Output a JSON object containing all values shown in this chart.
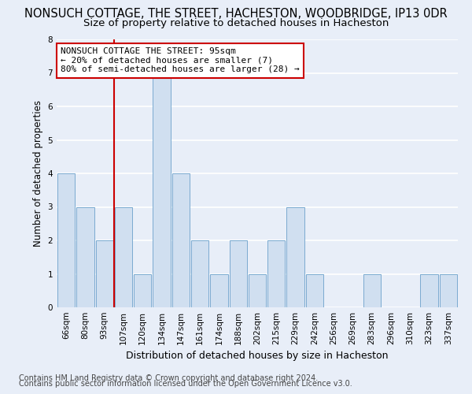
{
  "title": "NONSUCH COTTAGE, THE STREET, HACHESTON, WOODBRIDGE, IP13 0DR",
  "subtitle": "Size of property relative to detached houses in Hacheston",
  "xlabel": "Distribution of detached houses by size in Hacheston",
  "ylabel": "Number of detached properties",
  "categories": [
    "66sqm",
    "80sqm",
    "93sqm",
    "107sqm",
    "120sqm",
    "134sqm",
    "147sqm",
    "161sqm",
    "174sqm",
    "188sqm",
    "202sqm",
    "215sqm",
    "229sqm",
    "242sqm",
    "256sqm",
    "269sqm",
    "283sqm",
    "296sqm",
    "310sqm",
    "323sqm",
    "337sqm"
  ],
  "values": [
    4,
    3,
    2,
    3,
    1,
    7,
    4,
    2,
    1,
    2,
    1,
    2,
    3,
    1,
    0,
    0,
    1,
    0,
    0,
    1,
    1
  ],
  "bar_color": "#d0dff0",
  "bar_edge_color": "#7aaad0",
  "vline_color": "#cc0000",
  "vline_x": 2.5,
  "annotation_text": "NONSUCH COTTAGE THE STREET: 95sqm\n← 20% of detached houses are smaller (7)\n80% of semi-detached houses are larger (28) →",
  "annotation_box_facecolor": "white",
  "annotation_box_edgecolor": "#cc0000",
  "ylim": [
    0,
    8
  ],
  "yticks": [
    0,
    1,
    2,
    3,
    4,
    5,
    6,
    7,
    8
  ],
  "background_color": "#e8eef8",
  "plot_bg_color": "#e8eef8",
  "grid_color": "white",
  "footer_line1": "Contains HM Land Registry data © Crown copyright and database right 2024.",
  "footer_line2": "Contains public sector information licensed under the Open Government Licence v3.0.",
  "title_fontsize": 10.5,
  "subtitle_fontsize": 9.5,
  "xlabel_fontsize": 9,
  "ylabel_fontsize": 8.5,
  "tick_fontsize": 7.5,
  "annotation_fontsize": 8,
  "footer_fontsize": 7
}
